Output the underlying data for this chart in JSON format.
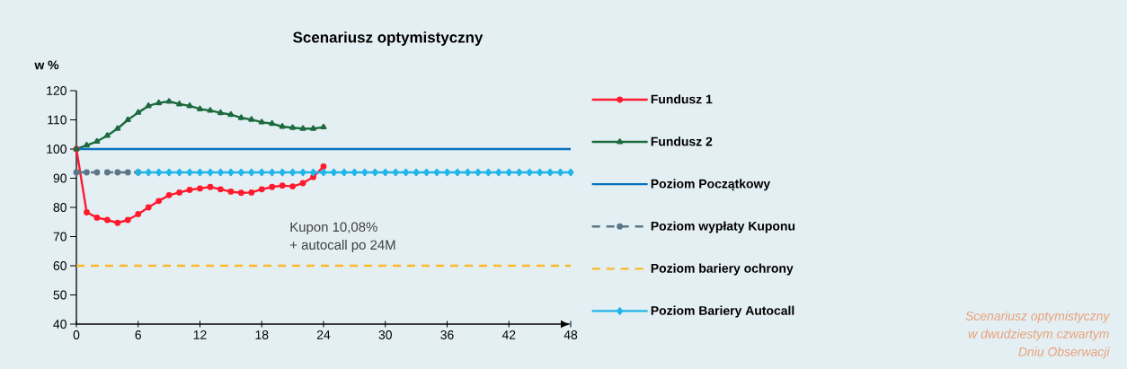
{
  "chart_data": {
    "type": "line",
    "title": "Scenariusz optymistyczny",
    "ylabel": "w %",
    "xlim": [
      0,
      48
    ],
    "xticks": [
      0,
      6,
      12,
      18,
      24,
      30,
      36,
      42,
      48
    ],
    "ylim": [
      40,
      120
    ],
    "yticks": [
      40,
      50,
      60,
      70,
      80,
      90,
      100,
      110,
      120
    ],
    "grid": false,
    "legend": "right",
    "annotations": [
      "Kupon 10,08%",
      "+ autocall po 24M",
      "Scenariusz optymistyczny",
      "w dwudziestym czwartym",
      "Dniu Obserwacji"
    ],
    "series": [
      {
        "name": "Fundusz 1",
        "color": "#ff1a2e",
        "marker": "circle",
        "line_style": "solid",
        "x": [
          0,
          1,
          2,
          3,
          4,
          5,
          6,
          7,
          8,
          9,
          10,
          11,
          12,
          13,
          14,
          15,
          16,
          17,
          18,
          19,
          20,
          21,
          22,
          23,
          24
        ],
        "values": [
          100,
          78.3,
          76.5,
          75.7,
          74.7,
          75.7,
          77.7,
          80,
          82.2,
          84.2,
          85.1,
          86,
          86.5,
          87,
          86.2,
          85.4,
          85,
          85.1,
          86.2,
          87,
          87.5,
          87.2,
          88.3,
          90.4,
          94
        ]
      },
      {
        "name": "Fundusz 2",
        "color": "#1b6b3e",
        "marker": "triangle",
        "line_style": "solid",
        "x": [
          0,
          1,
          2,
          3,
          4,
          5,
          6,
          7,
          8,
          9,
          10,
          11,
          12,
          13,
          14,
          15,
          16,
          17,
          18,
          19,
          20,
          21,
          22,
          23,
          24
        ],
        "values": [
          100,
          101.3,
          102.6,
          104.6,
          107,
          110,
          112.5,
          114.8,
          115.8,
          116.3,
          115.4,
          114.8,
          113.7,
          113.2,
          112.4,
          111.8,
          110.7,
          110.1,
          109.2,
          108.7,
          107.7,
          107.3,
          107,
          107,
          107.5
        ]
      },
      {
        "name": "Poziom Początkowy",
        "color": "#0a72bd",
        "marker": "none",
        "line_style": "solid",
        "x": [
          0,
          48
        ],
        "values": [
          100,
          100
        ]
      },
      {
        "name": "Poziom wypłaty Kuponu",
        "color": "#5b7687",
        "marker": "circle",
        "line_style": "dashed",
        "x": [
          0,
          1,
          2,
          3,
          4,
          5,
          6
        ],
        "values": [
          92,
          92,
          92,
          92,
          92,
          92,
          92
        ]
      },
      {
        "name": "Poziom bariery ochrony",
        "color": "#fbb829",
        "marker": "none",
        "line_style": "dashed",
        "x": [
          0,
          48
        ],
        "values": [
          60,
          60
        ]
      },
      {
        "name": "Poziom Bariery Autocall",
        "color": "#22b5e8",
        "marker": "diamond",
        "line_style": "solid",
        "x": [
          6,
          7,
          8,
          9,
          10,
          11,
          12,
          13,
          14,
          15,
          16,
          17,
          18,
          19,
          20,
          21,
          22,
          23,
          24,
          25,
          26,
          27,
          28,
          29,
          30,
          31,
          32,
          33,
          34,
          35,
          36,
          37,
          38,
          39,
          40,
          41,
          42,
          43,
          44,
          45,
          46,
          47,
          48
        ],
        "values": [
          92,
          92,
          92,
          92,
          92,
          92,
          92,
          92,
          92,
          92,
          92,
          92,
          92,
          92,
          92,
          92,
          92,
          92,
          92,
          92,
          92,
          92,
          92,
          92,
          92,
          92,
          92,
          92,
          92,
          92,
          92,
          92,
          92,
          92,
          92,
          92,
          92,
          92,
          92,
          92,
          92,
          92,
          92
        ]
      }
    ]
  }
}
